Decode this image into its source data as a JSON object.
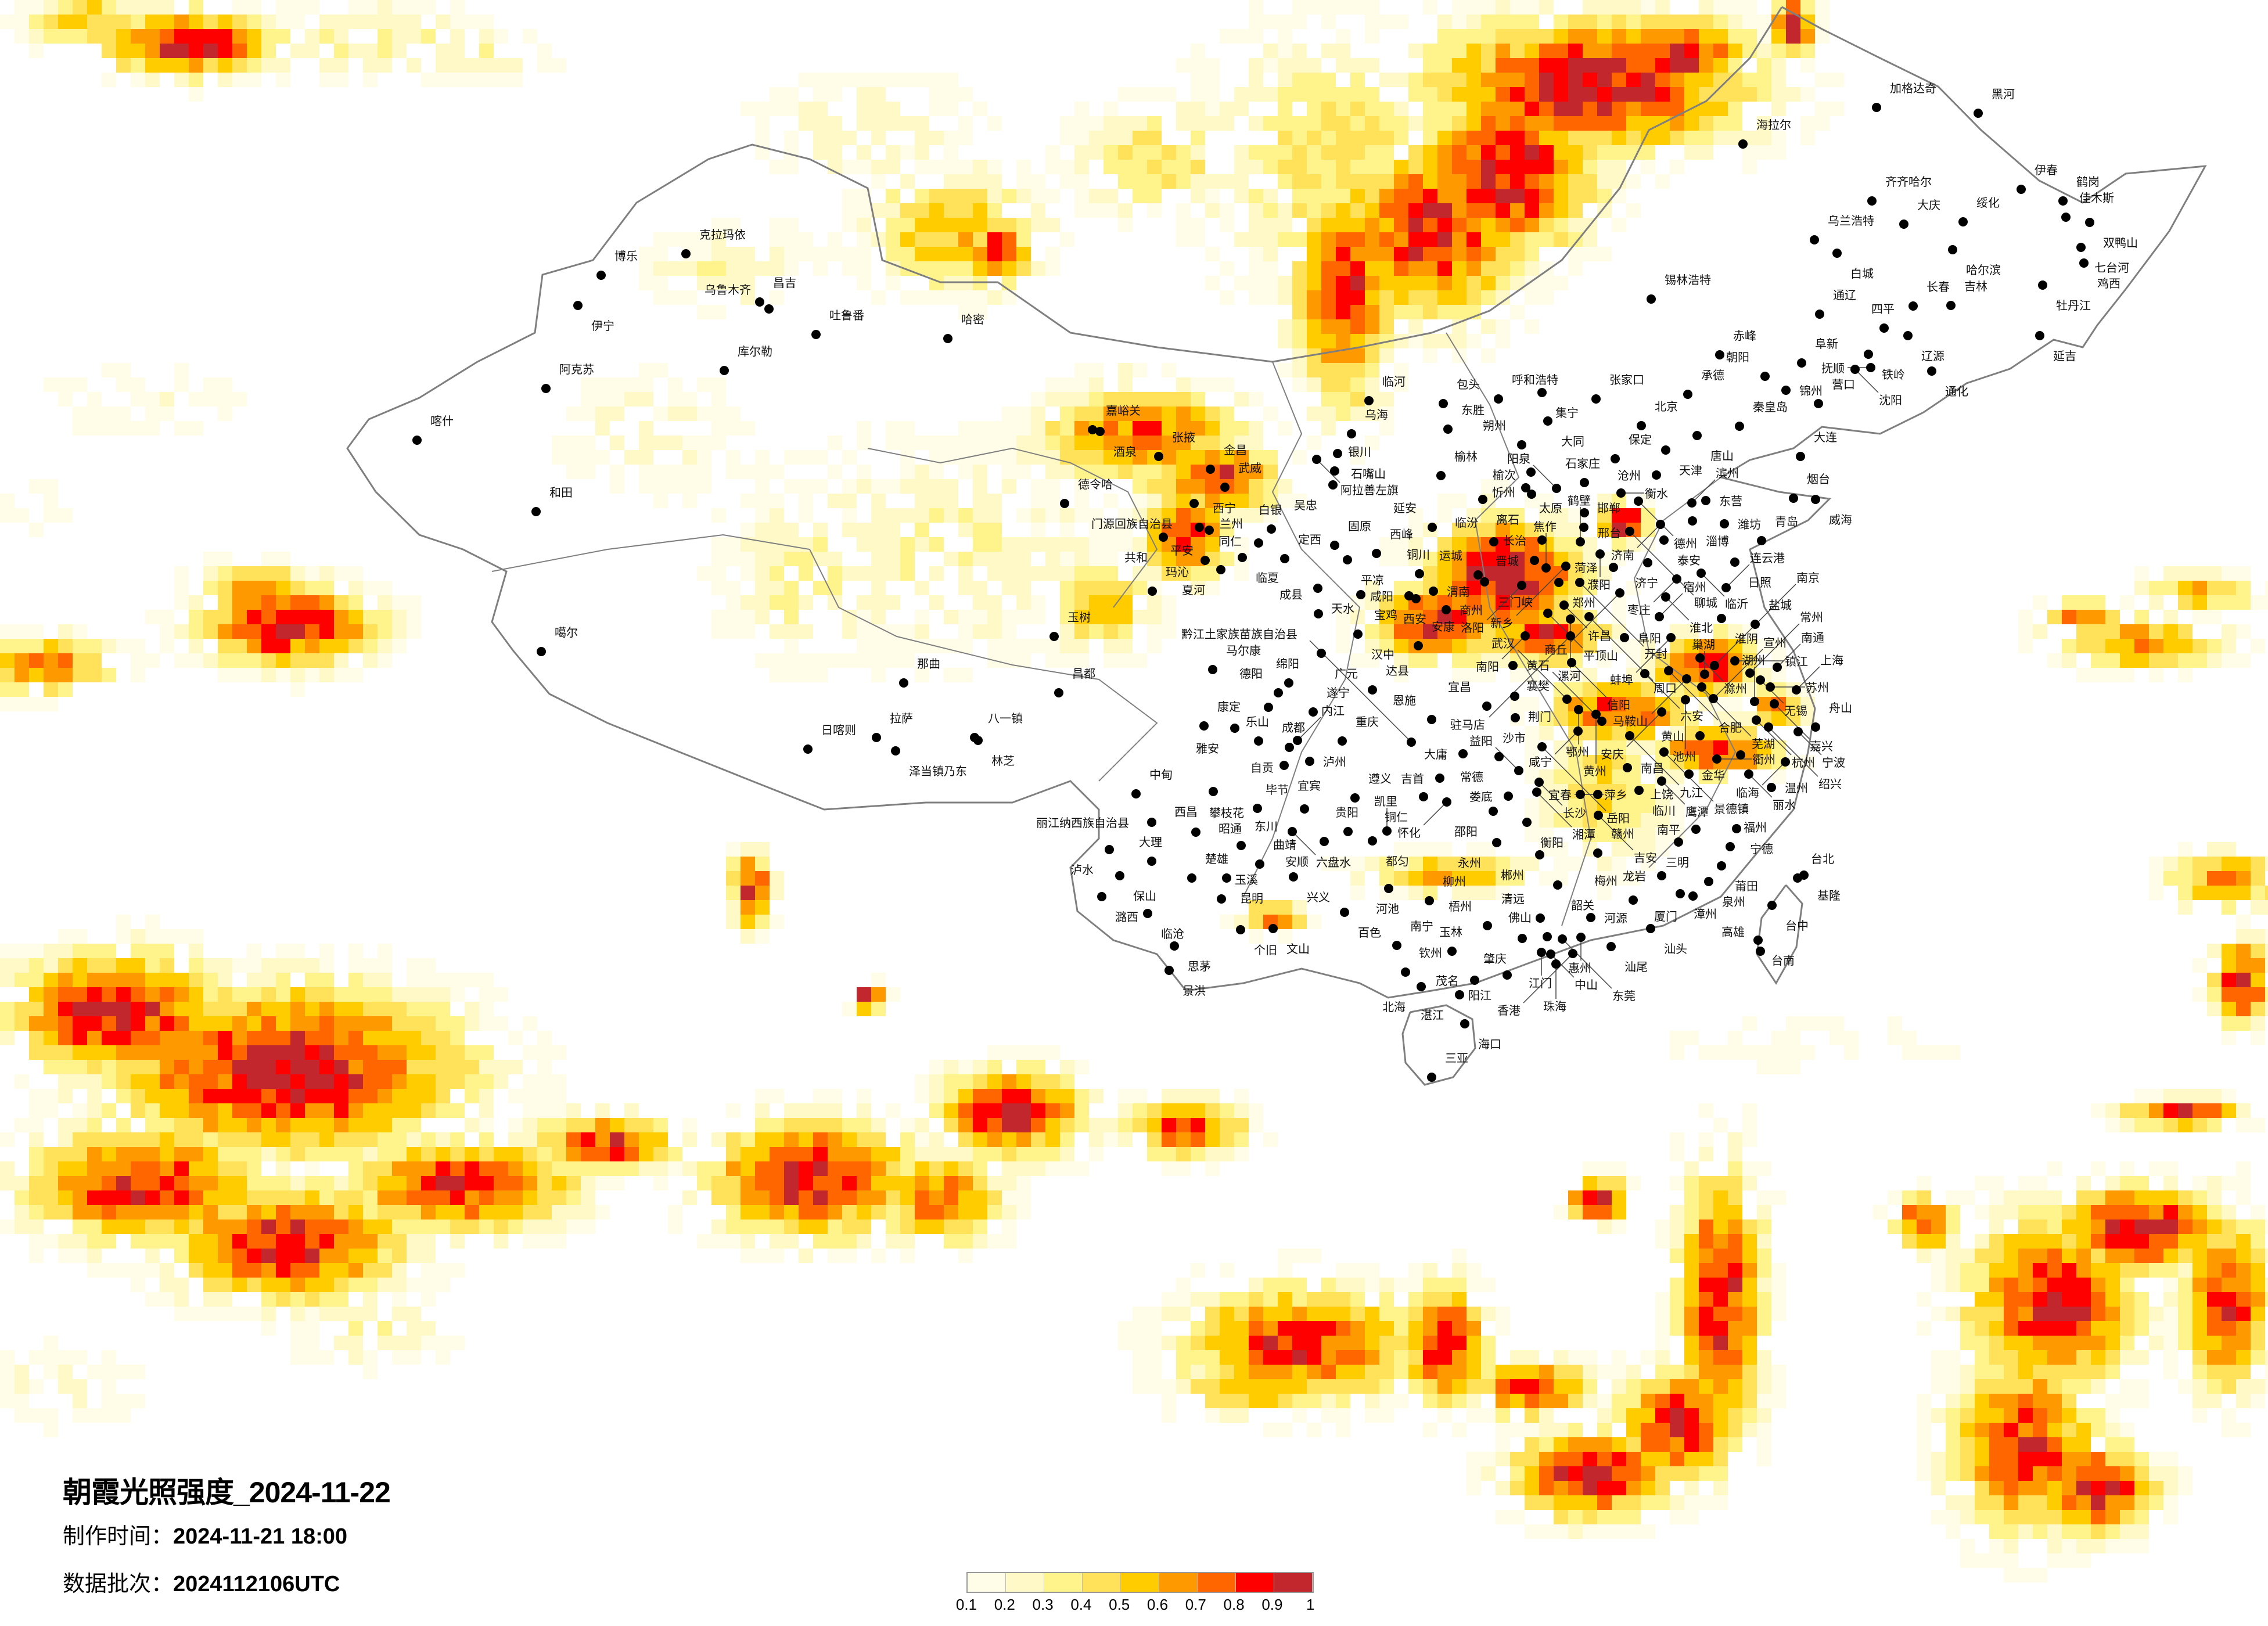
{
  "title": "朝霞光照强度_2024-11-22",
  "production_time": {
    "label": "制作时间：",
    "value": "2024-11-21 18:00"
  },
  "data_batch": {
    "label": "数据批次：",
    "value": "2024112106UTC"
  },
  "legend": {
    "labels": [
      "0.1",
      "0.2",
      "0.3",
      "0.4",
      "0.5",
      "0.6",
      "0.7",
      "0.8",
      "0.9",
      "1"
    ],
    "colors": [
      "#FFFDE8",
      "#FFF9C8",
      "#FFF48C",
      "#FFE15A",
      "#FFCC00",
      "#FF9900",
      "#FF6600",
      "#FF0000",
      "#C1272D"
    ]
  },
  "map": {
    "border_color": "#7f7f7f",
    "city_dot_color": "#000000",
    "cities": [
      "北京",
      "天津",
      "石家庄",
      "太原",
      "榆次",
      "呼和浩特",
      "集宁",
      "张家口",
      "大同",
      "朔州",
      "忻州",
      "离石",
      "阳泉",
      "保定",
      "唐山",
      "承德",
      "秦皇岛",
      "大连",
      "锦州",
      "营口",
      "朝阳",
      "阜新",
      "沧州",
      "衡水",
      "德州",
      "邢台",
      "邯郸",
      "聊城",
      "济南",
      "泰安",
      "淄博",
      "滨州",
      "东营",
      "潍坊",
      "烟台",
      "威海",
      "青岛",
      "济宁",
      "菏泽",
      "临沂",
      "日照",
      "枣庄",
      "连云港",
      "长治",
      "临汾",
      "晋城",
      "运城",
      "三门峡",
      "洛阳",
      "焦作",
      "新乡",
      "鹤壁",
      "濮阳",
      "郑州",
      "开封",
      "商丘",
      "许昌",
      "平顶山",
      "漯河",
      "周口",
      "淮北",
      "宿州",
      "淮阴",
      "盐城",
      "南阳",
      "驻马店",
      "阜阳",
      "蚌埠",
      "襄樊",
      "信阳",
      "六安",
      "合肥",
      "滁州",
      "镇江",
      "南京",
      "巢湖",
      "马鞍山",
      "芜湖",
      "南通",
      "常州",
      "无锡",
      "苏州",
      "上海",
      "湖州",
      "嘉兴",
      "杭州",
      "绍兴",
      "宁波",
      "舟山",
      "宣州",
      "池州",
      "安庆",
      "黄山",
      "荆门",
      "宜昌",
      "沙市",
      "武汉",
      "鄂州",
      "黄州",
      "黄石",
      "咸宁",
      "九江",
      "岳阳",
      "常德",
      "大庸",
      "益阳",
      "长沙",
      "湘潭",
      "萍乡",
      "宜春",
      "娄底",
      "邵阳",
      "衡阳",
      "永州",
      "郴州",
      "赣州",
      "吉安",
      "南昌",
      "临川",
      "鹰潭",
      "景德镇",
      "上饶",
      "衢州",
      "金华",
      "丽水",
      "临海",
      "温州",
      "南平",
      "三明",
      "宁德",
      "福州",
      "莆田",
      "泉州",
      "漳州",
      "厦门",
      "龙岩",
      "梅州",
      "汕头",
      "汕尾",
      "韶关",
      "清远",
      "河源",
      "惠州",
      "东莞",
      "佛山",
      "肇庆",
      "梧州",
      "江门",
      "中山",
      "香港",
      "珠海",
      "阳江",
      "茂名",
      "台北",
      "基隆",
      "台中",
      "台南",
      "高雄",
      "加格达奇",
      "黑河",
      "海拉尔",
      "伊春",
      "鹤岗",
      "齐齐哈尔",
      "大庆",
      "绥化",
      "佳木斯",
      "双鸭山",
      "乌兰浩特",
      "白城",
      "哈尔滨",
      "七台河",
      "鸡西",
      "牡丹江",
      "长春",
      "吉林",
      "通辽",
      "四平",
      "辽源",
      "延吉",
      "赤峰",
      "铁岭",
      "沈阳",
      "抚顺",
      "通化",
      "锡林浩特",
      "昌都",
      "马尔康",
      "广元",
      "绵阳",
      "德阳",
      "成都",
      "达县",
      "遂宁",
      "康定",
      "雅安",
      "乐山",
      "自贡",
      "内江",
      "重庆",
      "宜宾",
      "泸州",
      "恩施",
      "黔江土家族苗族自治县",
      "吉首",
      "铜仁",
      "怀化",
      "遵义",
      "毕节",
      "昭通",
      "中甸",
      "西昌",
      "丽江纳西族自治县",
      "攀枝花",
      "泸水",
      "大理",
      "保山",
      "潞西",
      "楚雄",
      "昆明",
      "曲靖",
      "东川",
      "六盘水",
      "安顺",
      "贵阳",
      "都匀",
      "凯里",
      "兴义",
      "玉溪",
      "临沧",
      "个旧",
      "文山",
      "思茅",
      "景洪",
      "百色",
      "河池",
      "柳州",
      "南宁",
      "玉林",
      "钦州",
      "北海",
      "湛江",
      "海口",
      "三亚",
      "克拉玛依",
      "博乐",
      "伊宁",
      "昌吉",
      "乌鲁木齐",
      "吐鲁番",
      "哈密",
      "库尔勒",
      "阿克苏",
      "喀什",
      "和田",
      "临河",
      "包头",
      "乌海",
      "东胜",
      "嘉峪关",
      "酒泉",
      "张掖",
      "金昌",
      "武威",
      "阿拉善左旗",
      "石嘴山",
      "银川",
      "吴忠",
      "榆林",
      "德令哈",
      "门源回族自治县",
      "西宁",
      "平安",
      "共和",
      "白银",
      "兰州",
      "临夏",
      "定西",
      "同仁",
      "夏河",
      "固原",
      "平凉",
      "西峰",
      "延安",
      "铜川",
      "天水",
      "宝鸡",
      "咸阳",
      "西安",
      "渭南",
      "商州",
      "成县",
      "汉中",
      "安康",
      "玛沁",
      "玉树",
      "噶尔",
      "那曲",
      "日喀则",
      "拉萨",
      "泽当镇乃东",
      "八一镇",
      "林芝"
    ]
  }
}
